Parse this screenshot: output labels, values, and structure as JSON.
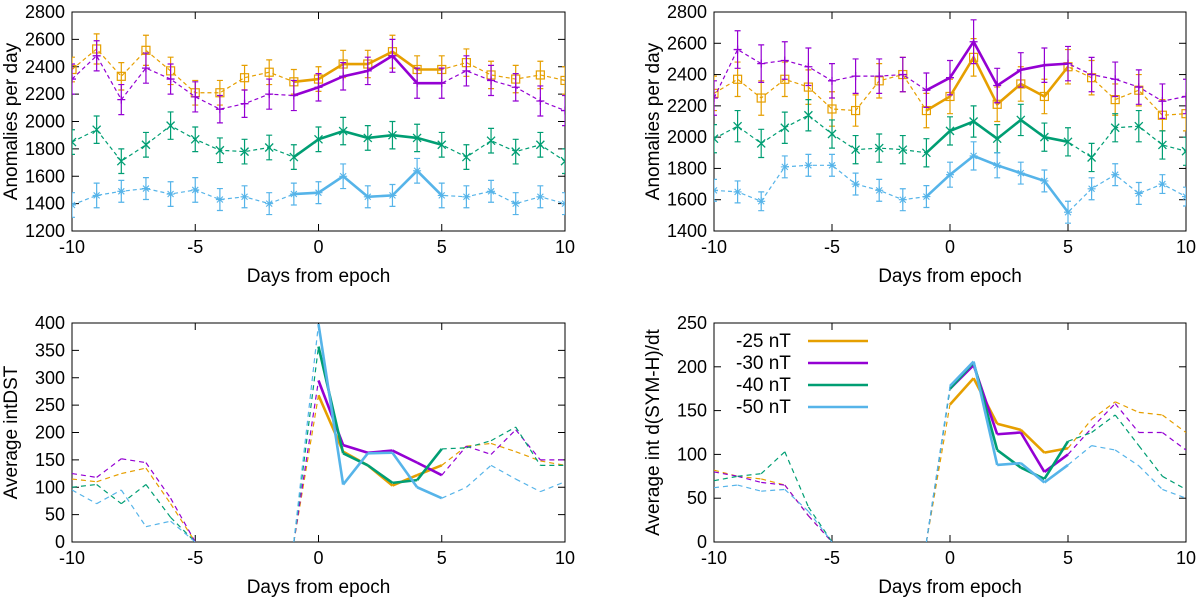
{
  "colors": {
    "orange": "#e69f00",
    "purple": "#9400d3",
    "green": "#009e73",
    "blue": "#56b4e9"
  },
  "chart_data": [
    {
      "type": "line",
      "id": "top-left",
      "xlabel": "Days from epoch",
      "ylabel": "Anomalies per day",
      "xlim": [
        -10,
        10
      ],
      "ylim": [
        1200,
        2800
      ],
      "xticks": [
        -10,
        -5,
        0,
        5,
        10
      ],
      "yticks": [
        1200,
        1400,
        1600,
        1800,
        2000,
        2200,
        2400,
        2600,
        2800
      ],
      "error_bars": true,
      "series": [
        {
          "name": "-25 nT",
          "color": "#e69f00",
          "marker": "square",
          "x": [
            -10,
            -9,
            -8,
            -7,
            -6,
            -5,
            -4,
            -3,
            -2,
            -1,
            0,
            1,
            2,
            3,
            4,
            5,
            6,
            7,
            8,
            9,
            10
          ],
          "y": [
            2380,
            2530,
            2330,
            2520,
            2370,
            2210,
            2210,
            2320,
            2360,
            2290,
            2310,
            2420,
            2420,
            2510,
            2380,
            2380,
            2430,
            2340,
            2310,
            2340,
            2300
          ],
          "err": [
            90,
            110,
            100,
            110,
            100,
            90,
            90,
            90,
            90,
            90,
            90,
            100,
            100,
            120,
            100,
            100,
            100,
            100,
            100,
            100,
            100
          ]
        },
        {
          "name": "-30 nT",
          "color": "#9400d3",
          "marker": "plus",
          "x": [
            -10,
            -9,
            -8,
            -7,
            -6,
            -5,
            -4,
            -3,
            -2,
            -1,
            0,
            1,
            2,
            3,
            4,
            5,
            6,
            7,
            8,
            9,
            10
          ],
          "y": [
            2310,
            2480,
            2160,
            2390,
            2310,
            2180,
            2090,
            2130,
            2200,
            2190,
            2250,
            2330,
            2370,
            2480,
            2280,
            2280,
            2370,
            2300,
            2250,
            2150,
            2080
          ],
          "err": [
            110,
            110,
            110,
            110,
            110,
            110,
            100,
            100,
            110,
            110,
            100,
            100,
            100,
            120,
            110,
            110,
            110,
            110,
            100,
            110,
            110
          ]
        },
        {
          "name": "-40 nT",
          "color": "#009e73",
          "marker": "cross",
          "x": [
            -10,
            -9,
            -8,
            -7,
            -6,
            -5,
            -4,
            -3,
            -2,
            -1,
            0,
            1,
            2,
            3,
            4,
            5,
            6,
            7,
            8,
            9,
            10
          ],
          "y": [
            1850,
            1940,
            1710,
            1830,
            1970,
            1870,
            1790,
            1780,
            1810,
            1740,
            1870,
            1930,
            1880,
            1900,
            1880,
            1830,
            1740,
            1860,
            1780,
            1830,
            1710
          ],
          "err": [
            90,
            100,
            90,
            90,
            100,
            90,
            90,
            90,
            90,
            90,
            90,
            100,
            90,
            100,
            100,
            90,
            90,
            90,
            90,
            90,
            90
          ]
        },
        {
          "name": "-50 nT",
          "color": "#56b4e9",
          "marker": "star",
          "x": [
            -10,
            -9,
            -8,
            -7,
            -6,
            -5,
            -4,
            -3,
            -2,
            -1,
            0,
            1,
            2,
            3,
            4,
            5,
            6,
            7,
            8,
            9,
            10
          ],
          "y": [
            1390,
            1460,
            1490,
            1510,
            1470,
            1500,
            1430,
            1450,
            1400,
            1470,
            1480,
            1600,
            1450,
            1460,
            1640,
            1460,
            1450,
            1490,
            1400,
            1450,
            1400
          ],
          "err": [
            90,
            90,
            80,
            80,
            90,
            90,
            80,
            80,
            80,
            80,
            80,
            90,
            80,
            80,
            90,
            90,
            80,
            80,
            80,
            80,
            80
          ]
        }
      ]
    },
    {
      "type": "line",
      "id": "top-right",
      "xlabel": "Days from epoch",
      "ylabel": "Anomalies per day",
      "xlim": [
        -10,
        10
      ],
      "ylim": [
        1400,
        2800
      ],
      "xticks": [
        -10,
        -5,
        0,
        5,
        10
      ],
      "yticks": [
        1400,
        1600,
        1800,
        2000,
        2200,
        2400,
        2600,
        2800
      ],
      "error_bars": true,
      "series": [
        {
          "name": "-25 nT",
          "color": "#e69f00",
          "marker": "square",
          "x": [
            -10,
            -9,
            -8,
            -7,
            -6,
            -5,
            -4,
            -3,
            -2,
            -1,
            0,
            1,
            2,
            3,
            4,
            5,
            6,
            7,
            8,
            9,
            10
          ],
          "y": [
            2280,
            2370,
            2250,
            2370,
            2320,
            2180,
            2170,
            2360,
            2400,
            2170,
            2260,
            2510,
            2210,
            2340,
            2260,
            2450,
            2380,
            2240,
            2300,
            2140,
            2150
          ],
          "err": [
            110,
            110,
            110,
            110,
            110,
            110,
            100,
            110,
            110,
            110,
            110,
            120,
            110,
            110,
            110,
            110,
            110,
            100,
            100,
            100,
            110
          ]
        },
        {
          "name": "-30 nT",
          "color": "#9400d3",
          "marker": "plus",
          "x": [
            -10,
            -9,
            -8,
            -7,
            -6,
            -5,
            -4,
            -3,
            -2,
            -1,
            0,
            1,
            2,
            3,
            4,
            5,
            6,
            7,
            8,
            9,
            10
          ],
          "y": [
            2250,
            2560,
            2470,
            2490,
            2450,
            2360,
            2390,
            2390,
            2400,
            2300,
            2380,
            2610,
            2330,
            2430,
            2460,
            2470,
            2400,
            2370,
            2320,
            2230,
            2260
          ],
          "err": [
            110,
            120,
            120,
            120,
            120,
            110,
            110,
            110,
            110,
            110,
            110,
            140,
            110,
            110,
            110,
            110,
            110,
            110,
            110,
            110,
            110
          ]
        },
        {
          "name": "-40 nT",
          "color": "#009e73",
          "marker": "cross",
          "x": [
            -10,
            -9,
            -8,
            -7,
            -6,
            -5,
            -4,
            -3,
            -2,
            -1,
            0,
            1,
            2,
            3,
            4,
            5,
            6,
            7,
            8,
            9,
            10
          ],
          "y": [
            1990,
            2070,
            1960,
            2060,
            2140,
            2020,
            1920,
            1930,
            1920,
            1900,
            2040,
            2100,
            1990,
            2110,
            2000,
            1970,
            1870,
            2060,
            2070,
            1950,
            1910
          ],
          "err": [
            90,
            100,
            90,
            100,
            100,
            90,
            90,
            90,
            90,
            90,
            90,
            100,
            90,
            100,
            90,
            90,
            90,
            90,
            100,
            90,
            90
          ]
        },
        {
          "name": "-50 nT",
          "color": "#56b4e9",
          "marker": "star",
          "x": [
            -10,
            -9,
            -8,
            -7,
            -6,
            -5,
            -4,
            -3,
            -2,
            -1,
            0,
            1,
            2,
            3,
            4,
            5,
            6,
            7,
            8,
            9,
            10
          ],
          "y": [
            1660,
            1650,
            1590,
            1810,
            1820,
            1820,
            1700,
            1660,
            1600,
            1620,
            1760,
            1880,
            1820,
            1770,
            1720,
            1520,
            1670,
            1760,
            1640,
            1700,
            1620
          ],
          "err": [
            70,
            70,
            60,
            70,
            70,
            70,
            70,
            70,
            70,
            70,
            80,
            90,
            80,
            70,
            70,
            70,
            70,
            70,
            70,
            60,
            60
          ]
        }
      ]
    },
    {
      "type": "line",
      "id": "bottom-left",
      "xlabel": "Days from epoch",
      "ylabel": "Average intDST",
      "xlim": [
        -10,
        10
      ],
      "ylim": [
        0,
        400
      ],
      "xticks": [
        -10,
        -5,
        0,
        5,
        10
      ],
      "yticks": [
        0,
        50,
        100,
        150,
        200,
        250,
        300,
        350,
        400
      ],
      "dashed_outside": [
        0,
        5
      ],
      "series": [
        {
          "name": "-25 nT",
          "color": "#e69f00",
          "x": [
            -10,
            -9,
            -8,
            -7,
            -6,
            -5,
            -4,
            -3,
            -2,
            -1,
            0,
            1,
            2,
            3,
            4,
            5,
            6,
            7,
            8,
            9,
            10
          ],
          "y": [
            115,
            110,
            125,
            135,
            70,
            0,
            null,
            null,
            null,
            0,
            268,
            165,
            140,
            103,
            122,
            140,
            175,
            180,
            165,
            148,
            140
          ]
        },
        {
          "name": "-30 nT",
          "color": "#9400d3",
          "x": [
            -10,
            -9,
            -8,
            -7,
            -6,
            -5,
            -4,
            -3,
            -2,
            -1,
            0,
            1,
            2,
            3,
            4,
            5,
            6,
            7,
            8,
            9,
            10
          ],
          "y": [
            125,
            118,
            152,
            145,
            80,
            0,
            null,
            null,
            null,
            0,
            295,
            177,
            163,
            167,
            145,
            122,
            175,
            160,
            205,
            150,
            150
          ]
        },
        {
          "name": "-40 nT",
          "color": "#009e73",
          "x": [
            -10,
            -9,
            -8,
            -7,
            -6,
            -5,
            -4,
            -3,
            -2,
            -1,
            0,
            1,
            2,
            3,
            4,
            5,
            6,
            7,
            8,
            9,
            10
          ],
          "y": [
            100,
            105,
            70,
            105,
            45,
            0,
            null,
            null,
            null,
            0,
            357,
            162,
            140,
            108,
            113,
            170,
            172,
            185,
            210,
            140,
            140
          ]
        },
        {
          "name": "-50 nT",
          "color": "#56b4e9",
          "x": [
            -10,
            -9,
            -8,
            -7,
            -6,
            -5,
            -4,
            -3,
            -2,
            -1,
            0,
            1,
            2,
            3,
            4,
            5,
            6,
            7,
            8,
            9,
            10
          ],
          "y": [
            95,
            70,
            95,
            28,
            38,
            0,
            null,
            null,
            null,
            0,
            398,
            105,
            162,
            163,
            100,
            80,
            100,
            140,
            115,
            92,
            110
          ]
        }
      ]
    },
    {
      "type": "line",
      "id": "bottom-right",
      "xlabel": "Days from epoch",
      "ylabel": "Average int d(SYM-H)/dt",
      "xlim": [
        -10,
        10
      ],
      "ylim": [
        0,
        250
      ],
      "xticks": [
        -10,
        -5,
        0,
        5,
        10
      ],
      "yticks": [
        0,
        50,
        100,
        150,
        200,
        250
      ],
      "dashed_outside": [
        0,
        5
      ],
      "legend": {
        "placement": "top-left",
        "entries": [
          "-25 nT",
          "-30 nT",
          "-40 nT",
          "-50 nT"
        ]
      },
      "series": [
        {
          "name": "-25 nT",
          "color": "#e69f00",
          "x": [
            -10,
            -9,
            -8,
            -7,
            -6,
            -5,
            -4,
            -3,
            -2,
            -1,
            0,
            1,
            2,
            3,
            4,
            5,
            6,
            7,
            8,
            9,
            10
          ],
          "y": [
            82,
            75,
            72,
            65,
            30,
            0,
            null,
            null,
            null,
            0,
            157,
            187,
            135,
            128,
            102,
            107,
            140,
            160,
            148,
            145,
            125
          ]
        },
        {
          "name": "-30 nT",
          "color": "#9400d3",
          "x": [
            -10,
            -9,
            -8,
            -7,
            -6,
            -5,
            -4,
            -3,
            -2,
            -1,
            0,
            1,
            2,
            3,
            4,
            5,
            6,
            7,
            8,
            9,
            10
          ],
          "y": [
            80,
            75,
            68,
            65,
            30,
            0,
            null,
            null,
            null,
            0,
            175,
            202,
            123,
            125,
            80,
            100,
            130,
            158,
            125,
            125,
            105
          ]
        },
        {
          "name": "-40 nT",
          "color": "#009e73",
          "x": [
            -10,
            -9,
            -8,
            -7,
            -6,
            -5,
            -4,
            -3,
            -2,
            -1,
            0,
            1,
            2,
            3,
            4,
            5,
            6,
            7,
            8,
            9,
            10
          ],
          "y": [
            70,
            75,
            78,
            103,
            40,
            0,
            null,
            null,
            null,
            0,
            175,
            205,
            105,
            85,
            72,
            115,
            125,
            145,
            110,
            75,
            60
          ]
        },
        {
          "name": "-50 nT",
          "color": "#56b4e9",
          "x": [
            -10,
            -9,
            -8,
            -7,
            -6,
            -5,
            -4,
            -3,
            -2,
            -1,
            0,
            1,
            2,
            3,
            4,
            5,
            6,
            7,
            8,
            9,
            10
          ],
          "y": [
            62,
            65,
            58,
            60,
            35,
            0,
            null,
            null,
            null,
            0,
            178,
            206,
            88,
            90,
            68,
            88,
            110,
            105,
            87,
            60,
            50
          ]
        }
      ]
    }
  ]
}
